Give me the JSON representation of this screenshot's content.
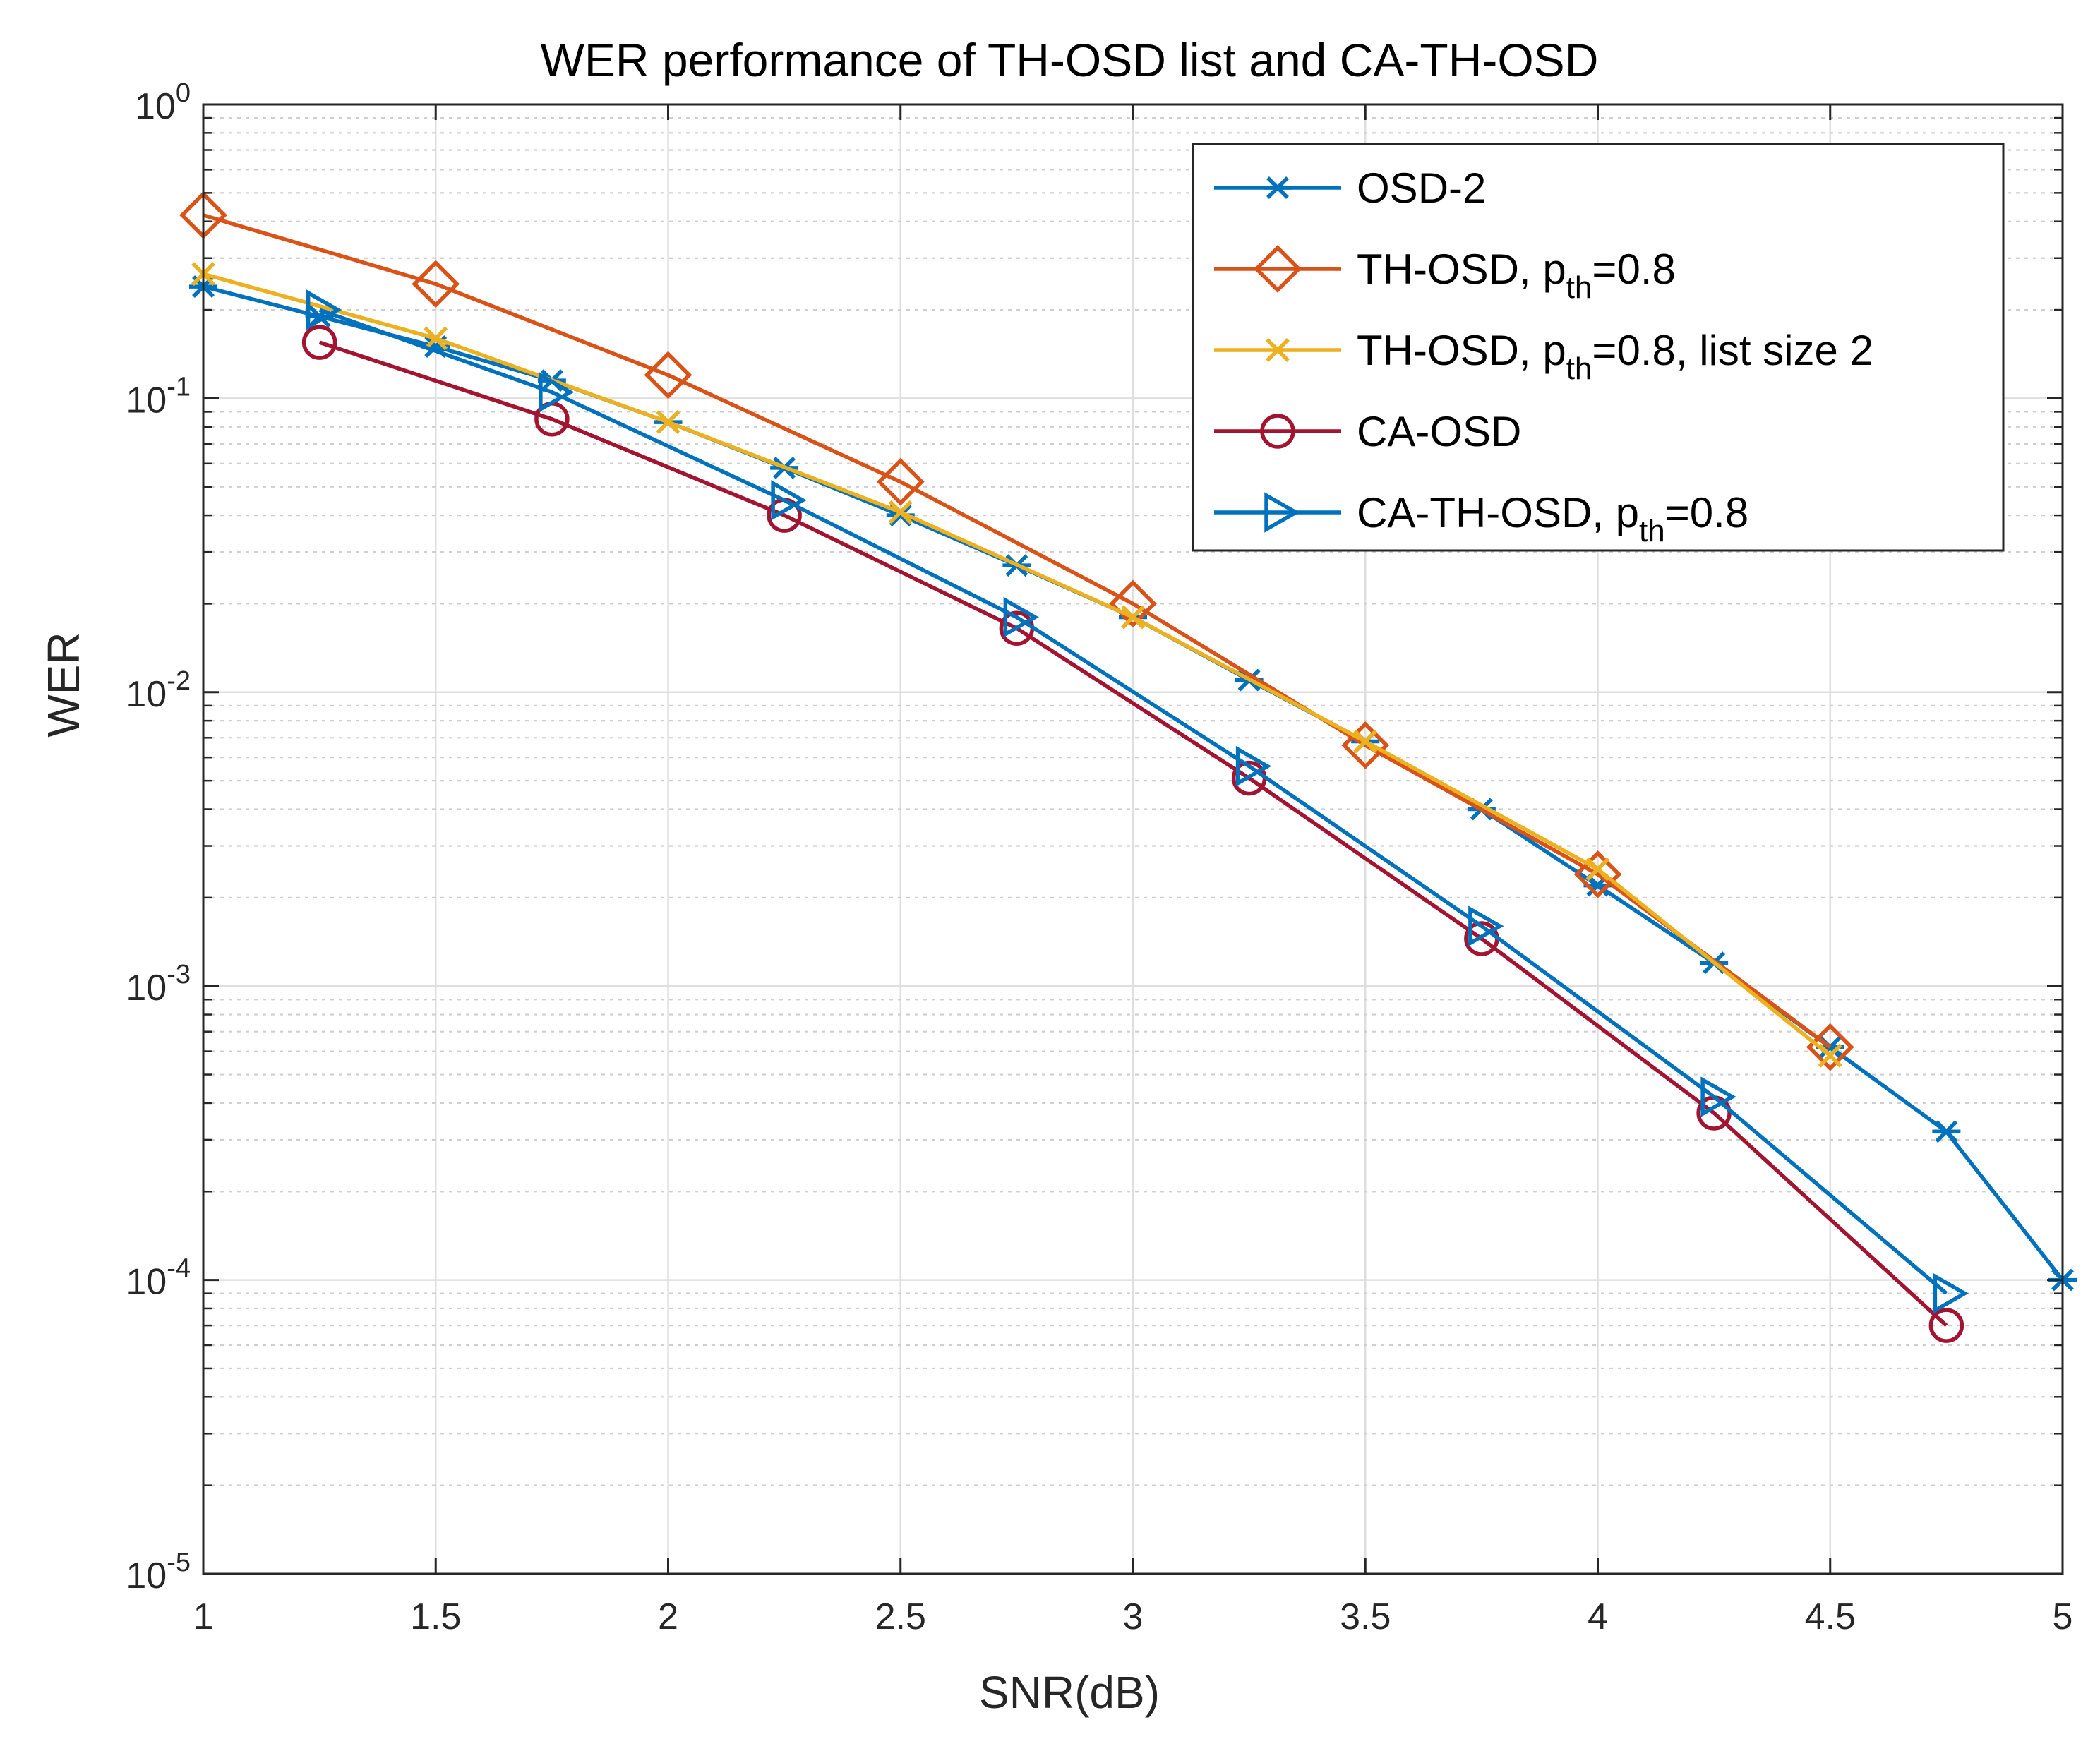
{
  "chart_data": {
    "type": "line",
    "title": "WER performance of TH-OSD list and CA-TH-OSD",
    "xlabel": "SNR(dB)",
    "ylabel": "WER",
    "xlim": [
      1,
      5
    ],
    "ylim": [
      1e-05,
      1
    ],
    "yscale": "log",
    "grid": true,
    "minor_grid": true,
    "legend_position": "top-right",
    "x_ticks": [
      1,
      1.5,
      2,
      2.5,
      3,
      3.5,
      4,
      4.5,
      5
    ],
    "x_tick_labels": [
      "1",
      "1.5",
      "2",
      "2.5",
      "3",
      "3.5",
      "4",
      "4.5",
      "5"
    ],
    "y_ticks": [
      1,
      0.1,
      0.01,
      0.001,
      0.0001,
      1e-05
    ],
    "y_tick_labels": [
      {
        "base": "10",
        "exp": "0"
      },
      {
        "base": "10",
        "exp": "-1"
      },
      {
        "base": "10",
        "exp": "-2"
      },
      {
        "base": "10",
        "exp": "-3"
      },
      {
        "base": "10",
        "exp": "-4"
      },
      {
        "base": "10",
        "exp": "-5"
      }
    ],
    "series": [
      {
        "name": "OSD-2",
        "legend": {
          "main": "OSD-2",
          "sub": "",
          "tail": ""
        },
        "color": "#0072BD",
        "marker": "asterisk",
        "x": [
          1,
          1.25,
          1.5,
          1.75,
          2,
          2.25,
          2.5,
          2.75,
          3,
          3.25,
          3.5,
          3.75,
          4,
          4.25,
          4.5,
          4.75,
          5
        ],
        "y": [
          0.24,
          0.19,
          0.15,
          0.115,
          0.083,
          0.058,
          0.04,
          0.027,
          0.018,
          0.011,
          0.0068,
          0.004,
          0.0022,
          0.0012,
          0.00062,
          0.00032,
          0.0001
        ]
      },
      {
        "name": "TH-OSD, p_th=0.8",
        "legend": {
          "main": "TH-OSD, p",
          "sub": "th",
          "tail": "=0.8"
        },
        "color": "#D95319",
        "marker": "diamond",
        "x": [
          1,
          1.5,
          2,
          2.5,
          3,
          3.5,
          4,
          4.5
        ],
        "y": [
          0.42,
          0.245,
          0.12,
          0.052,
          0.02,
          0.0066,
          0.0024,
          0.00062
        ]
      },
      {
        "name": "TH-OSD, p_th=0.8, list size 2",
        "legend": {
          "main": "TH-OSD, p",
          "sub": "th",
          "tail": "=0.8, list size 2"
        },
        "color": "#EDB120",
        "marker": "x",
        "x": [
          1,
          1.5,
          2,
          2.5,
          3,
          3.5,
          4,
          4.5
        ],
        "y": [
          0.265,
          0.16,
          0.083,
          0.041,
          0.018,
          0.0068,
          0.0025,
          0.00058
        ]
      },
      {
        "name": "CA-OSD",
        "legend": {
          "main": "CA-OSD",
          "sub": "",
          "tail": ""
        },
        "color": "#A2142F",
        "marker": "circle",
        "x": [
          1.25,
          1.75,
          2.25,
          2.75,
          3.25,
          3.75,
          4.25,
          4.75
        ],
        "y": [
          0.155,
          0.085,
          0.04,
          0.0165,
          0.0051,
          0.00145,
          0.00037,
          7e-05
        ]
      },
      {
        "name": "CA-TH-OSD, p_th=0.8",
        "legend": {
          "main": "CA-TH-OSD, p",
          "sub": "th",
          "tail": "=0.8"
        },
        "color": "#0072BD",
        "marker": "triangle-right",
        "x": [
          1.25,
          1.75,
          2.25,
          2.75,
          3.25,
          3.75,
          4.25,
          4.75
        ],
        "y": [
          0.2,
          0.105,
          0.045,
          0.018,
          0.0056,
          0.0016,
          0.00042,
          9e-05
        ]
      }
    ]
  }
}
